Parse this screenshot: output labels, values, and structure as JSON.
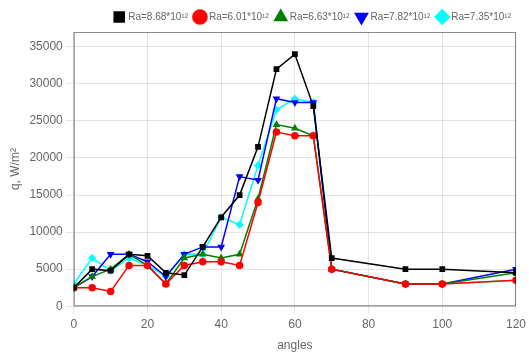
{
  "chart_data": {
    "type": "line",
    "xlabel": "angles",
    "ylabel": "q, W/m²",
    "x": [
      0,
      5,
      10,
      15,
      20,
      25,
      30,
      35,
      40,
      45,
      50,
      55,
      60,
      65,
      70,
      90,
      100,
      120
    ],
    "series": [
      {
        "name": "Ra=8.68*10¹²",
        "color": "black",
        "marker": "square",
        "values": [
          2500,
          5000,
          4800,
          7000,
          6800,
          4500,
          4200,
          8000,
          12000,
          15000,
          21500,
          32000,
          34000,
          27000,
          6500,
          5000,
          5000,
          4500
        ]
      },
      {
        "name": "Ra=6.01*10¹²",
        "color": "red",
        "marker": "circle",
        "values": [
          2500,
          2500,
          2000,
          5500,
          5500,
          3000,
          5500,
          6000,
          6000,
          5500,
          14000,
          23500,
          23000,
          23000,
          5000,
          3000,
          3000,
          3500
        ]
      },
      {
        "name": "Ra=6.63*10¹²",
        "color": "green",
        "marker": "triangle-up",
        "values": [
          2500,
          4000,
          5000,
          7000,
          5500,
          3000,
          6500,
          7000,
          6500,
          7000,
          14500,
          24500,
          24000,
          23000,
          5000,
          3000,
          3000,
          4500
        ]
      },
      {
        "name": "Ra=7.82*10¹²",
        "color": "blue",
        "marker": "triangle-down",
        "values": [
          2500,
          4000,
          7000,
          7000,
          6000,
          4000,
          7000,
          8000,
          8000,
          17500,
          17000,
          28000,
          27500,
          27500,
          5000,
          3000,
          3000,
          5000
        ]
      },
      {
        "name": "Ra=7.35*10¹²",
        "color": "cyan",
        "marker": "diamond",
        "values": [
          3000,
          6500,
          4800,
          6500,
          5500,
          4000,
          7000,
          7000,
          12000,
          11000,
          19000,
          26500,
          28000,
          27500,
          5000,
          3000,
          3000,
          3500
        ]
      }
    ],
    "xlim": [
      0,
      120
    ],
    "ylim": [
      0,
      37000
    ],
    "xticks": [
      0,
      20,
      40,
      60,
      80,
      100,
      120
    ],
    "yticks": [
      0,
      5000,
      10000,
      15000,
      20000,
      25000,
      30000,
      35000
    ],
    "grid": true,
    "legend": "upper right"
  }
}
